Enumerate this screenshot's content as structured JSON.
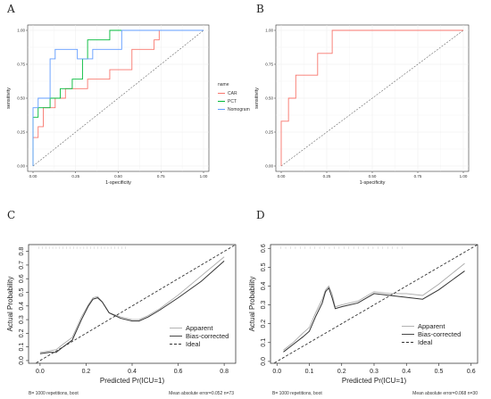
{
  "chart_data": [
    {
      "type": "line",
      "panel": "A",
      "xlabel": "1-specificity",
      "ylabel": "sensitivity",
      "xlim": [
        0,
        1
      ],
      "ylim": [
        0,
        1
      ],
      "xticks": [
        "0.00",
        "0.25",
        "0.50",
        "0.75",
        "1.00"
      ],
      "yticks": [
        "0.00",
        "0.25",
        "0.50",
        "0.75",
        "1.00"
      ],
      "grid": true,
      "legend": {
        "title": "name",
        "placement": "right"
      },
      "series": [
        {
          "name": "CAR",
          "color": "#F8766D",
          "x": [
            0,
            0,
            0.03,
            0.03,
            0.06,
            0.06,
            0.13,
            0.13,
            0.19,
            0.19,
            0.32,
            0.32,
            0.45,
            0.45,
            0.58,
            0.58,
            0.71,
            0.71,
            0.74,
            0.74,
            1
          ],
          "y": [
            0,
            0.21,
            0.21,
            0.29,
            0.29,
            0.43,
            0.43,
            0.5,
            0.5,
            0.57,
            0.57,
            0.64,
            0.64,
            0.71,
            0.71,
            0.86,
            0.86,
            0.93,
            0.93,
            1,
            1
          ]
        },
        {
          "name": "PCT",
          "color": "#00BA38",
          "x": [
            0,
            0,
            0.03,
            0.03,
            0.1,
            0.1,
            0.16,
            0.16,
            0.23,
            0.23,
            0.29,
            0.29,
            0.32,
            0.32,
            0.45,
            0.45,
            0.74,
            1
          ],
          "y": [
            0,
            0.36,
            0.36,
            0.43,
            0.43,
            0.5,
            0.5,
            0.57,
            0.57,
            0.64,
            0.64,
            0.79,
            0.79,
            0.93,
            0.93,
            1,
            1,
            1
          ]
        },
        {
          "name": "Nomogram",
          "color": "#619CFF",
          "x": [
            0,
            0,
            0.03,
            0.03,
            0.1,
            0.1,
            0.13,
            0.13,
            0.26,
            0.26,
            0.35,
            0.35,
            0.52,
            0.52,
            1
          ],
          "y": [
            0,
            0.43,
            0.43,
            0.5,
            0.5,
            0.79,
            0.79,
            0.86,
            0.86,
            0.79,
            0.79,
            0.86,
            0.86,
            1,
            1
          ]
        }
      ]
    },
    {
      "type": "line",
      "panel": "B",
      "xlabel": "1-specificity",
      "ylabel": "sensitivity",
      "xlim": [
        0,
        1
      ],
      "ylim": [
        0,
        1
      ],
      "xticks": [
        "0.00",
        "0.25",
        "0.50",
        "0.75",
        "1.00"
      ],
      "yticks": [
        "0.00",
        "0.25",
        "0.50",
        "0.75",
        "1.00"
      ],
      "grid": true,
      "series": [
        {
          "color": "#F8766D",
          "x": [
            0,
            0,
            0.04,
            0.04,
            0.08,
            0.08,
            0.12,
            0.12,
            0.2,
            0.2,
            0.28,
            0.28,
            1
          ],
          "y": [
            0,
            0.33,
            0.33,
            0.5,
            0.5,
            0.67,
            0.67,
            0.67,
            0.67,
            0.83,
            0.83,
            1,
            1
          ]
        }
      ]
    },
    {
      "type": "line",
      "panel": "C",
      "xlabel": "Predicted Pr(ICU=1)",
      "ylabel": "Actual Probability",
      "xlim": [
        -0.05,
        0.85
      ],
      "ylim": [
        -0.02,
        0.85
      ],
      "xticks": [
        0.0,
        0.2,
        0.4,
        0.6,
        0.8
      ],
      "yticks": [
        0.0,
        0.1,
        0.2,
        0.3,
        0.4,
        0.5,
        0.6,
        0.7,
        0.8
      ],
      "legend": {
        "placement": "bottom-right"
      },
      "footer_left": "B= 1000 repetitions, boot",
      "footer_right": "Mean absolute error=0.052 n=73",
      "series": [
        {
          "name": "Apparent",
          "color": "#aaaaaa",
          "dash": "none",
          "x": [
            0.0,
            0.04,
            0.07,
            0.1,
            0.14,
            0.18,
            0.21,
            0.23,
            0.25,
            0.27,
            0.3,
            0.35,
            0.4,
            0.43,
            0.47,
            0.52,
            0.6,
            0.7,
            0.8
          ],
          "y": [
            0.06,
            0.07,
            0.08,
            0.12,
            0.17,
            0.32,
            0.41,
            0.46,
            0.47,
            0.43,
            0.35,
            0.32,
            0.3,
            0.3,
            0.33,
            0.38,
            0.48,
            0.62,
            0.76
          ]
        },
        {
          "name": "Bias-corrected",
          "color": "#333333",
          "dash": "none",
          "x": [
            0.0,
            0.04,
            0.07,
            0.1,
            0.14,
            0.18,
            0.21,
            0.23,
            0.25,
            0.27,
            0.3,
            0.35,
            0.4,
            0.43,
            0.47,
            0.52,
            0.6,
            0.7,
            0.8
          ],
          "y": [
            0.05,
            0.06,
            0.06,
            0.1,
            0.15,
            0.3,
            0.4,
            0.45,
            0.46,
            0.43,
            0.35,
            0.31,
            0.29,
            0.29,
            0.32,
            0.37,
            0.46,
            0.58,
            0.73
          ]
        },
        {
          "name": "Ideal",
          "color": "#333333",
          "dash": "3,2",
          "x": [
            -0.05,
            0.85
          ],
          "y": [
            -0.05,
            0.85
          ]
        }
      ]
    },
    {
      "type": "line",
      "panel": "D",
      "xlabel": "Predicted Pr(ICU=1)",
      "ylabel": "Actual Probability",
      "xlim": [
        -0.02,
        0.62
      ],
      "ylim": [
        -0.01,
        0.62
      ],
      "xticks": [
        0.0,
        0.1,
        0.2,
        0.3,
        0.4,
        0.5,
        0.6
      ],
      "yticks": [
        0.0,
        0.1,
        0.2,
        0.3,
        0.4,
        0.5,
        0.6
      ],
      "legend": {
        "placement": "bottom-right"
      },
      "footer_left": "B= 1000 repetitions, boot",
      "footer_right": "Mean absolute error=0.068 n=30",
      "series": [
        {
          "name": "Apparent",
          "color": "#aaaaaa",
          "dash": "none",
          "x": [
            0.02,
            0.05,
            0.08,
            0.1,
            0.12,
            0.14,
            0.15,
            0.16,
            0.17,
            0.18,
            0.2,
            0.25,
            0.3,
            0.35,
            0.4,
            0.45,
            0.5,
            0.58
          ],
          "y": [
            0.06,
            0.1,
            0.15,
            0.18,
            0.26,
            0.33,
            0.38,
            0.4,
            0.36,
            0.29,
            0.3,
            0.32,
            0.37,
            0.36,
            0.36,
            0.35,
            0.41,
            0.52
          ]
        },
        {
          "name": "Bias-corrected",
          "color": "#333333",
          "dash": "none",
          "x": [
            0.02,
            0.05,
            0.08,
            0.1,
            0.12,
            0.14,
            0.15,
            0.16,
            0.17,
            0.18,
            0.2,
            0.25,
            0.3,
            0.35,
            0.4,
            0.45,
            0.5,
            0.58
          ],
          "y": [
            0.05,
            0.09,
            0.13,
            0.16,
            0.24,
            0.31,
            0.37,
            0.39,
            0.34,
            0.28,
            0.29,
            0.31,
            0.36,
            0.35,
            0.34,
            0.33,
            0.38,
            0.48
          ]
        },
        {
          "name": "Ideal",
          "color": "#333333",
          "dash": "3,2",
          "x": [
            -0.02,
            0.62
          ],
          "y": [
            -0.02,
            0.62
          ]
        }
      ]
    }
  ],
  "panels": {
    "A": {
      "letter": "A"
    },
    "B": {
      "letter": "B"
    },
    "C": {
      "letter": "C"
    },
    "D": {
      "letter": "D"
    }
  }
}
